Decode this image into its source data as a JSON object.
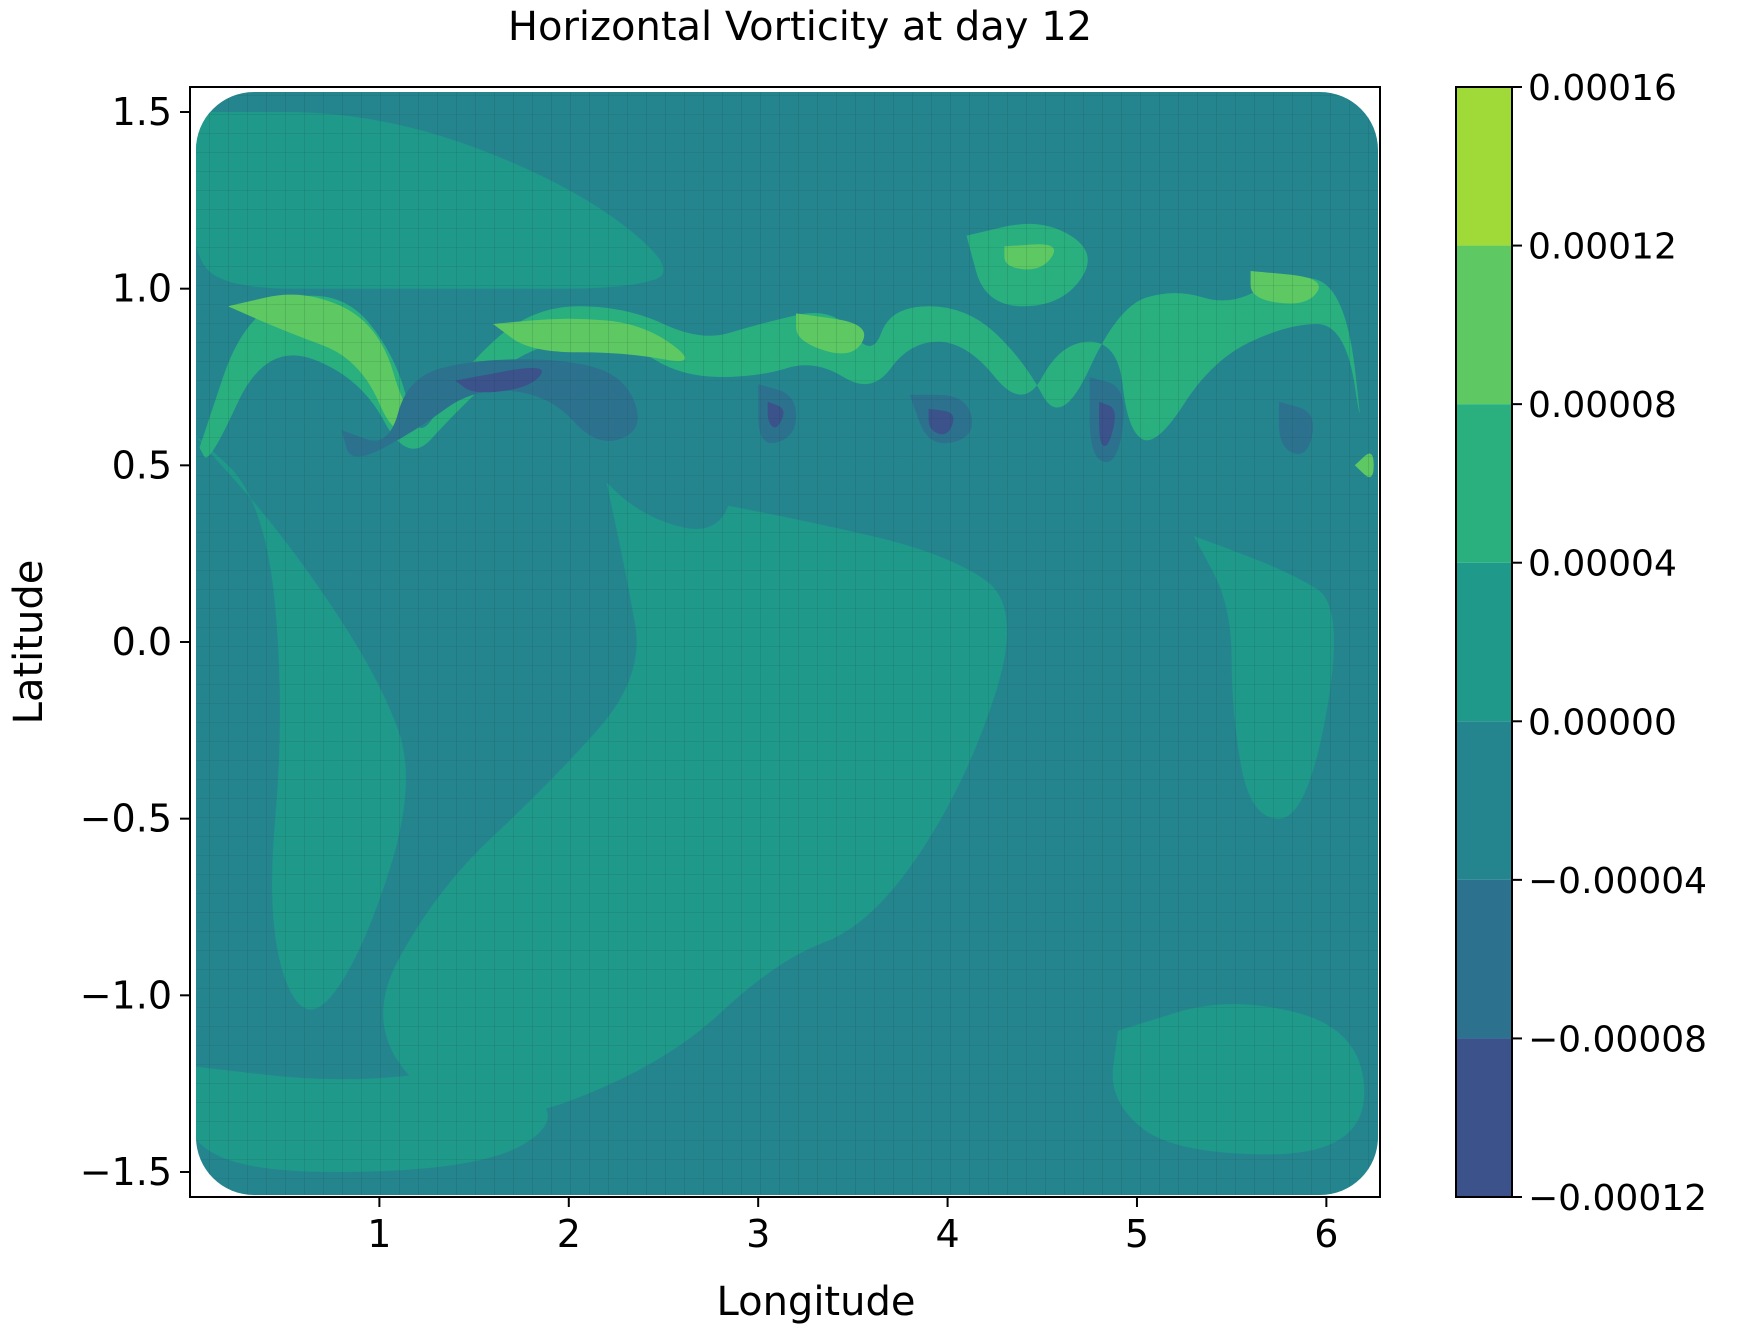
{
  "chart_data": {
    "type": "heatmap",
    "title": "Horizontal Vorticity at day 12",
    "xlabel": "Longitude",
    "ylabel": "Latitude",
    "xlim": [
      0,
      6.2832
    ],
    "ylim": [
      -1.5708,
      1.5708
    ],
    "x_ticks": [
      1,
      2,
      3,
      4,
      5,
      6
    ],
    "x_tick_labels": [
      "1",
      "2",
      "3",
      "4",
      "5",
      "6"
    ],
    "y_ticks": [
      1.5,
      1.0,
      0.5,
      0.0,
      -0.5,
      -1.0,
      -1.5
    ],
    "y_tick_labels": [
      "1.5",
      "1.0",
      "0.5",
      "0.0",
      "−0.5",
      "−1.0",
      "−1.5"
    ],
    "grid": "cubed-sphere mesh overlay",
    "colorbar": {
      "levels": [
        -0.00012,
        -8e-05,
        -4e-05,
        0.0,
        4e-05,
        8e-05,
        0.00012,
        0.00016
      ],
      "tick_labels": [
        "−0.00012",
        "−0.00008",
        "−0.00004",
        "0.00000",
        "0.00004",
        "0.00008",
        "0.00012",
        "0.00016"
      ],
      "colors": [
        "#3b528b",
        "#2c728e",
        "#25858e",
        "#1f9a8a",
        "#2ab07f",
        "#5ec962",
        "#a0da39"
      ]
    },
    "background_color": "#25858e",
    "features": [
      {
        "kind": "band",
        "level": 3,
        "points": [
          [
            0.0,
            0.6
          ],
          [
            0.5,
            0.3
          ],
          [
            1.0,
            -0.1
          ],
          [
            1.2,
            -0.4
          ],
          [
            0.9,
            -0.9
          ],
          [
            0.6,
            -1.1
          ],
          [
            0.4,
            -0.8
          ],
          [
            0.5,
            -0.2
          ],
          [
            0.4,
            0.4
          ]
        ]
      },
      {
        "kind": "band",
        "level": 3,
        "points": [
          [
            2.2,
            0.45
          ],
          [
            3.2,
            0.35
          ],
          [
            4.0,
            0.25
          ],
          [
            4.4,
            0.1
          ],
          [
            4.1,
            -0.4
          ],
          [
            3.6,
            -0.8
          ],
          [
            3.1,
            -0.9
          ],
          [
            2.5,
            -1.2
          ],
          [
            1.5,
            -1.4
          ],
          [
            0.9,
            -1.1
          ],
          [
            1.3,
            -0.7
          ],
          [
            1.9,
            -0.4
          ],
          [
            2.4,
            -0.1
          ],
          [
            2.3,
            0.2
          ]
        ]
      },
      {
        "kind": "band",
        "level": 3,
        "points": [
          [
            5.3,
            0.3
          ],
          [
            5.8,
            0.2
          ],
          [
            6.1,
            0.1
          ],
          [
            5.9,
            -0.5
          ],
          [
            5.6,
            -0.5
          ],
          [
            5.5,
            -0.2
          ],
          [
            5.5,
            0.1
          ]
        ]
      },
      {
        "kind": "band",
        "level": 3,
        "points": [
          [
            0.0,
            1.5
          ],
          [
            1.0,
            1.5
          ],
          [
            2.0,
            1.3
          ],
          [
            2.6,
            1.05
          ],
          [
            2.3,
            1.0
          ],
          [
            1.6,
            1.0
          ],
          [
            0.9,
            1.0
          ],
          [
            0.2,
            1.0
          ],
          [
            0.0,
            1.1
          ]
        ]
      },
      {
        "kind": "band",
        "level": 3,
        "points": [
          [
            4.9,
            -1.1
          ],
          [
            5.5,
            -1.0
          ],
          [
            6.2,
            -1.1
          ],
          [
            6.2,
            -1.45
          ],
          [
            5.2,
            -1.45
          ],
          [
            4.85,
            -1.3
          ]
        ]
      },
      {
        "kind": "band",
        "level": 3,
        "points": [
          [
            0.0,
            -1.2
          ],
          [
            0.8,
            -1.25
          ],
          [
            1.6,
            -1.2
          ],
          [
            2.0,
            -1.35
          ],
          [
            1.5,
            -1.5
          ],
          [
            0.0,
            -1.5
          ]
        ]
      },
      {
        "kind": "band",
        "level": 2,
        "points": [
          [
            0.1,
            0.7
          ],
          [
            0.6,
            0.85
          ],
          [
            1.0,
            0.55
          ],
          [
            1.3,
            0.6
          ],
          [
            1.5,
            0.5
          ],
          [
            1.4,
            0.2
          ],
          [
            1.0,
            0.1
          ],
          [
            0.7,
            0.3
          ],
          [
            0.5,
            0.6
          ]
        ]
      },
      {
        "kind": "band",
        "level": 2,
        "points": [
          [
            2.1,
            0.7
          ],
          [
            2.6,
            0.6
          ],
          [
            2.9,
            0.5
          ],
          [
            2.8,
            0.3
          ],
          [
            2.4,
            0.35
          ],
          [
            2.1,
            0.5
          ]
        ]
      },
      {
        "kind": "band",
        "level": 2,
        "points": [
          [
            3.8,
            0.75
          ],
          [
            4.3,
            0.6
          ],
          [
            4.35,
            0.3
          ],
          [
            4.0,
            0.25
          ],
          [
            3.7,
            0.45
          ]
        ]
      },
      {
        "kind": "band",
        "level": 2,
        "points": [
          [
            4.7,
            0.9
          ],
          [
            5.1,
            0.85
          ],
          [
            5.3,
            0.5
          ],
          [
            5.0,
            0.3
          ],
          [
            4.7,
            0.45
          ]
        ]
      },
      {
        "kind": "band",
        "level": 2,
        "points": [
          [
            5.6,
            0.85
          ],
          [
            6.0,
            0.8
          ],
          [
            6.1,
            0.45
          ],
          [
            5.8,
            0.35
          ],
          [
            5.55,
            0.55
          ]
        ]
      },
      {
        "kind": "band",
        "level": 4,
        "points": [
          [
            0.05,
            0.55
          ],
          [
            0.3,
            0.95
          ],
          [
            0.8,
            1.0
          ],
          [
            1.1,
            0.8
          ],
          [
            1.2,
            0.55
          ],
          [
            1.4,
            0.75
          ],
          [
            1.8,
            0.95
          ],
          [
            2.3,
            0.95
          ],
          [
            2.7,
            0.85
          ],
          [
            3.0,
            0.9
          ],
          [
            3.4,
            0.95
          ],
          [
            3.6,
            0.8
          ],
          [
            3.7,
            0.95
          ],
          [
            4.1,
            0.95
          ],
          [
            4.4,
            0.8
          ],
          [
            4.6,
            0.6
          ],
          [
            4.9,
            0.95
          ],
          [
            5.2,
            1.0
          ],
          [
            5.5,
            0.95
          ],
          [
            5.8,
            1.05
          ],
          [
            6.1,
            1.0
          ],
          [
            6.2,
            0.55
          ],
          [
            6.1,
            0.9
          ],
          [
            5.8,
            0.9
          ],
          [
            5.4,
            0.8
          ],
          [
            5.1,
            0.55
          ],
          [
            4.95,
            0.6
          ],
          [
            4.9,
            0.85
          ],
          [
            4.6,
            0.85
          ],
          [
            4.4,
            0.65
          ],
          [
            4.1,
            0.85
          ],
          [
            3.8,
            0.85
          ],
          [
            3.6,
            0.7
          ],
          [
            3.3,
            0.8
          ],
          [
            3.0,
            0.75
          ],
          [
            2.6,
            0.75
          ],
          [
            2.3,
            0.85
          ],
          [
            1.8,
            0.85
          ],
          [
            1.4,
            0.65
          ],
          [
            1.15,
            0.5
          ],
          [
            0.9,
            0.75
          ],
          [
            0.4,
            0.85
          ],
          [
            0.1,
            0.5
          ]
        ]
      },
      {
        "kind": "band",
        "level": 4,
        "points": [
          [
            4.1,
            1.15
          ],
          [
            4.5,
            1.2
          ],
          [
            4.8,
            1.1
          ],
          [
            4.6,
            0.95
          ],
          [
            4.2,
            0.95
          ]
        ]
      },
      {
        "kind": "band",
        "level": 5,
        "points": [
          [
            0.2,
            0.95
          ],
          [
            0.6,
            1.0
          ],
          [
            1.0,
            0.9
          ],
          [
            1.15,
            0.62
          ],
          [
            1.3,
            0.7
          ],
          [
            1.1,
            0.55
          ],
          [
            0.9,
            0.8
          ],
          [
            0.5,
            0.88
          ]
        ]
      },
      {
        "kind": "band",
        "level": 5,
        "points": [
          [
            1.6,
            0.9
          ],
          [
            2.0,
            0.92
          ],
          [
            2.4,
            0.9
          ],
          [
            2.7,
            0.78
          ],
          [
            2.3,
            0.82
          ],
          [
            1.8,
            0.82
          ]
        ]
      },
      {
        "kind": "band",
        "level": 5,
        "points": [
          [
            3.2,
            0.93
          ],
          [
            3.6,
            0.9
          ],
          [
            3.5,
            0.8
          ],
          [
            3.2,
            0.85
          ]
        ]
      },
      {
        "kind": "band",
        "level": 5,
        "points": [
          [
            5.6,
            1.05
          ],
          [
            6.0,
            1.03
          ],
          [
            5.9,
            0.95
          ],
          [
            5.6,
            0.97
          ]
        ]
      },
      {
        "kind": "band",
        "level": 5,
        "points": [
          [
            4.3,
            1.12
          ],
          [
            4.6,
            1.13
          ],
          [
            4.5,
            1.05
          ],
          [
            4.3,
            1.06
          ]
        ]
      },
      {
        "kind": "band",
        "level": 5,
        "points": [
          [
            6.15,
            0.5
          ],
          [
            6.25,
            0.55
          ],
          [
            6.25,
            0.45
          ]
        ]
      },
      {
        "kind": "band",
        "level": 1,
        "points": [
          [
            0.8,
            0.6
          ],
          [
            1.05,
            0.55
          ],
          [
            1.15,
            0.75
          ],
          [
            1.5,
            0.8
          ],
          [
            2.0,
            0.8
          ],
          [
            2.3,
            0.75
          ],
          [
            2.4,
            0.6
          ],
          [
            2.15,
            0.55
          ],
          [
            1.9,
            0.7
          ],
          [
            1.5,
            0.72
          ],
          [
            1.2,
            0.6
          ],
          [
            0.85,
            0.5
          ]
        ]
      },
      {
        "kind": "band",
        "level": 1,
        "points": [
          [
            3.0,
            0.73
          ],
          [
            3.2,
            0.7
          ],
          [
            3.2,
            0.58
          ],
          [
            3.0,
            0.55
          ]
        ]
      },
      {
        "kind": "band",
        "level": 1,
        "points": [
          [
            3.8,
            0.7
          ],
          [
            4.1,
            0.7
          ],
          [
            4.15,
            0.58
          ],
          [
            3.9,
            0.55
          ]
        ]
      },
      {
        "kind": "band",
        "level": 1,
        "points": [
          [
            4.75,
            0.75
          ],
          [
            4.95,
            0.72
          ],
          [
            4.9,
            0.5
          ],
          [
            4.75,
            0.52
          ]
        ]
      },
      {
        "kind": "band",
        "level": 1,
        "points": [
          [
            5.75,
            0.68
          ],
          [
            5.95,
            0.65
          ],
          [
            5.9,
            0.52
          ],
          [
            5.75,
            0.55
          ]
        ]
      },
      {
        "kind": "band",
        "level": 0,
        "points": [
          [
            1.4,
            0.74
          ],
          [
            1.9,
            0.79
          ],
          [
            1.8,
            0.72
          ],
          [
            1.5,
            0.7
          ]
        ]
      },
      {
        "kind": "band",
        "level": 0,
        "points": [
          [
            3.05,
            0.68
          ],
          [
            3.15,
            0.66
          ],
          [
            3.1,
            0.6
          ],
          [
            3.05,
            0.62
          ]
        ]
      },
      {
        "kind": "band",
        "level": 0,
        "points": [
          [
            3.9,
            0.66
          ],
          [
            4.05,
            0.65
          ],
          [
            4.0,
            0.58
          ],
          [
            3.9,
            0.6
          ]
        ]
      },
      {
        "kind": "band",
        "level": 0,
        "points": [
          [
            4.8,
            0.68
          ],
          [
            4.9,
            0.66
          ],
          [
            4.85,
            0.55
          ],
          [
            4.8,
            0.56
          ]
        ]
      }
    ]
  }
}
